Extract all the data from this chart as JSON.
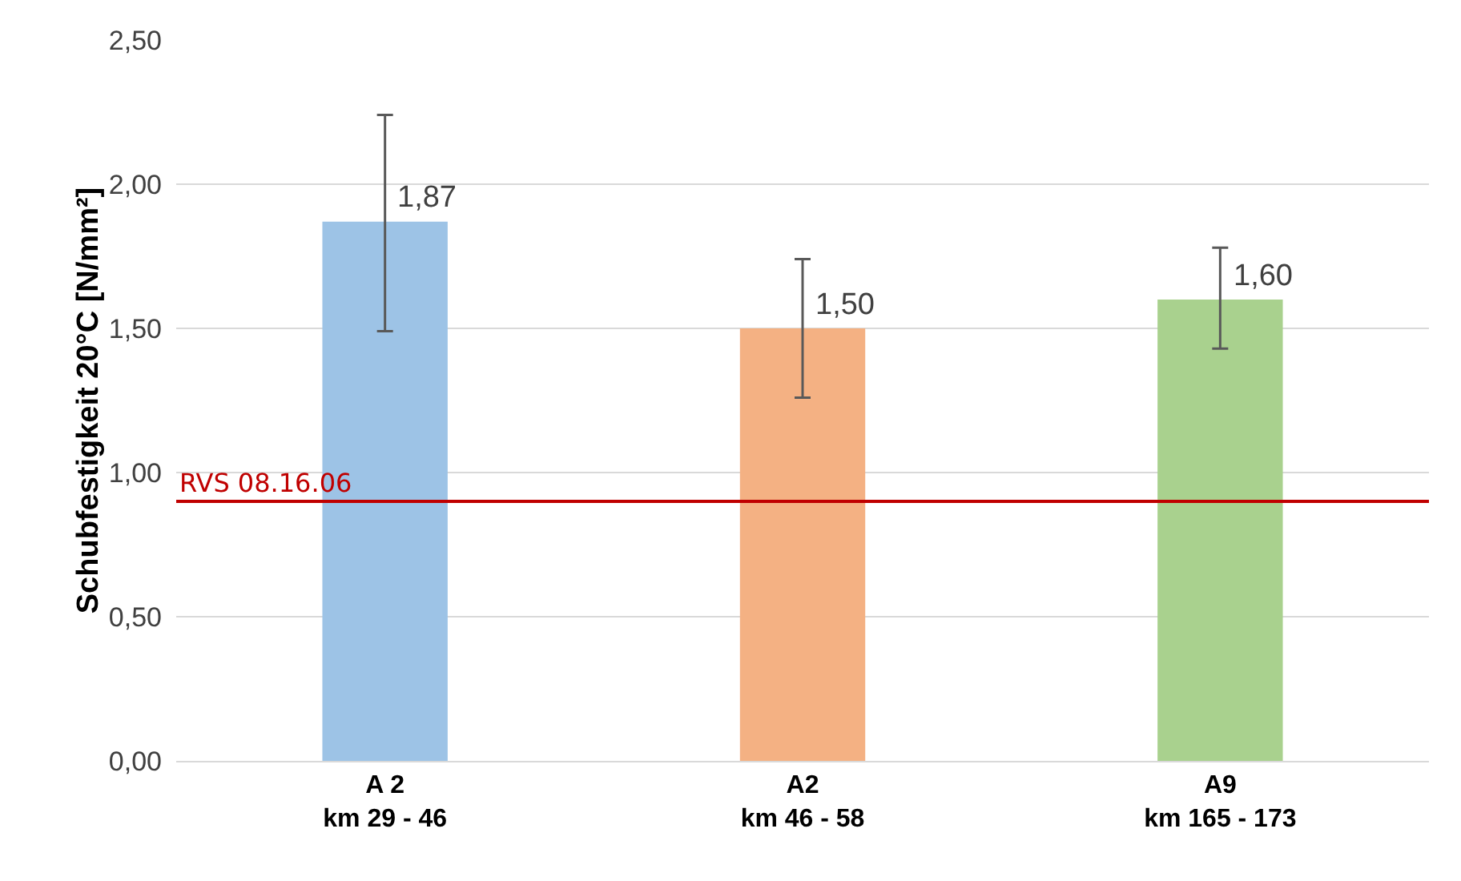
{
  "chart_data": {
    "type": "bar",
    "ylabel": "Schubfestigkeit 20°C [N/mm²]",
    "categories": [
      "A 2\nkm 29 - 46",
      "A2\nkm 46 - 58",
      "A9\nkm 165 - 173"
    ],
    "values": [
      1.87,
      1.5,
      1.6
    ],
    "colors": [
      "#9dc3e6",
      "#f4b183",
      "#a9d18e"
    ],
    "value_labels": [
      "1,87",
      "1,50",
      "1,60"
    ],
    "errors": [
      [
        1.49,
        2.24
      ],
      [
        1.26,
        1.74
      ],
      [
        1.43,
        1.78
      ]
    ],
    "ylim": [
      0,
      2.5
    ],
    "yticks": [
      {
        "value": 0,
        "label": "0,00"
      },
      {
        "value": 0.5,
        "label": "0,50"
      },
      {
        "value": 1,
        "label": "1,00"
      },
      {
        "value": 1.5,
        "label": "1,50"
      },
      {
        "value": 2,
        "label": "2,00"
      },
      {
        "value": 2.5,
        "label": "2,50"
      }
    ],
    "grid": "y",
    "ref_lines": [
      {
        "axis": "y",
        "value": 0.9,
        "label": "RVS 08.16.06",
        "color": "#c00000"
      }
    ]
  }
}
